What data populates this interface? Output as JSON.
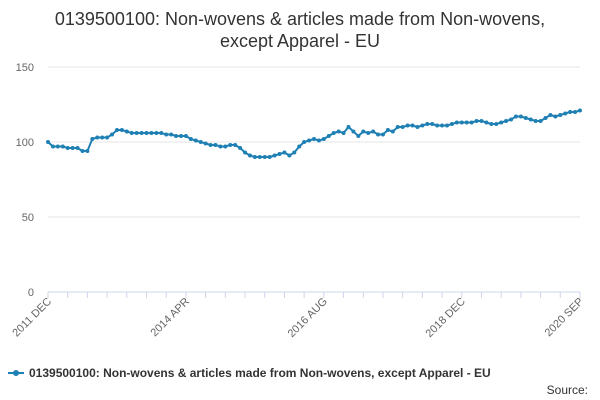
{
  "chart_data": {
    "type": "line",
    "title": "0139500100: Non-wovens & articles made from Non-wovens, except Apparel - EU",
    "y_ticks": [
      0,
      50,
      100,
      150
    ],
    "ylim": [
      0,
      150
    ],
    "x_tick_labels": [
      "2011 DEC",
      "2014 APR",
      "2016 AUG",
      "2018 DEC",
      "2020 SEP"
    ],
    "x_start_label": "2011 DEC",
    "x_end_label": "2020 SEP",
    "grid": "horizontal",
    "legend_position": "bottom-left",
    "series": [
      {
        "name": "0139500100: Non-wovens & articles made from Non-wovens, except Apparel - EU",
        "color": "#1f80b4",
        "values": [
          100,
          97,
          97,
          97,
          96,
          96,
          96,
          94,
          94,
          102,
          103,
          103,
          103,
          105,
          108,
          108,
          107,
          106,
          106,
          106,
          106,
          106,
          106,
          106,
          105,
          105,
          104,
          104,
          104,
          102,
          101,
          100,
          99,
          98,
          98,
          97,
          97,
          98,
          98,
          96,
          93,
          91,
          90,
          90,
          90,
          90,
          91,
          92,
          93,
          91,
          93,
          97,
          100,
          101,
          102,
          101,
          102,
          104,
          106,
          107,
          106,
          110,
          107,
          104,
          107,
          106,
          107,
          105,
          105,
          108,
          107,
          110,
          110,
          111,
          111,
          110,
          111,
          112,
          112,
          111,
          111,
          111,
          112,
          113,
          113,
          113,
          113,
          114,
          114,
          113,
          112,
          112,
          113,
          114,
          115,
          117,
          117,
          116,
          115,
          114,
          114,
          116,
          118,
          117,
          118,
          119,
          120,
          120,
          121
        ]
      }
    ]
  },
  "legend": {
    "label": "0139500100: Non-wovens & articles made from Non-wovens, except Apparel - EU"
  },
  "source_label": "Source:"
}
